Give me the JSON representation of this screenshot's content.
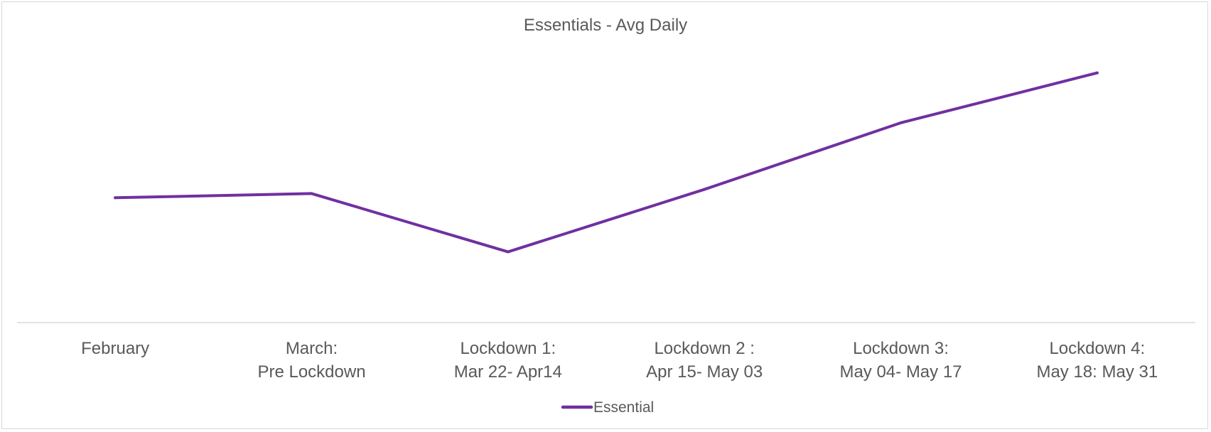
{
  "chart_data": {
    "type": "line",
    "title": "Essentials - Avg Daily",
    "xlabel": "",
    "ylabel": "",
    "categories": [
      [
        "February"
      ],
      [
        "March:",
        "Pre Lockdown"
      ],
      [
        "Lockdown 1:",
        "Mar 22- Apr14"
      ],
      [
        "Lockdown 2 :",
        "Apr 15- May 03"
      ],
      [
        "Lockdown 3:",
        "May 04- May 17"
      ],
      [
        "Lockdown 4:",
        "May 18: May 31"
      ]
    ],
    "series": [
      {
        "name": "Essential",
        "color": "#7030a0",
        "values": [
          30,
          31,
          17,
          32,
          48,
          60
        ]
      }
    ],
    "ylim": [
      0,
      70
    ],
    "grid": false,
    "y_axis_visible": false,
    "legend": "bottom"
  }
}
